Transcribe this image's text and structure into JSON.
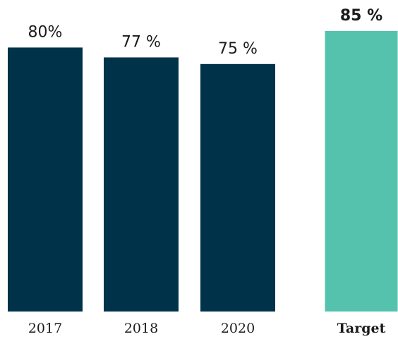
{
  "chart_data": {
    "type": "bar",
    "categories": [
      "2017",
      "2018",
      "2020",
      "Target"
    ],
    "values": [
      80,
      77,
      75,
      85
    ],
    "value_labels": [
      "80%",
      "77 %",
      "75 %",
      "85 %"
    ],
    "colors": [
      "#003349",
      "#003349",
      "#003349",
      "#55c2ad"
    ],
    "ylim": [
      0,
      85
    ]
  }
}
